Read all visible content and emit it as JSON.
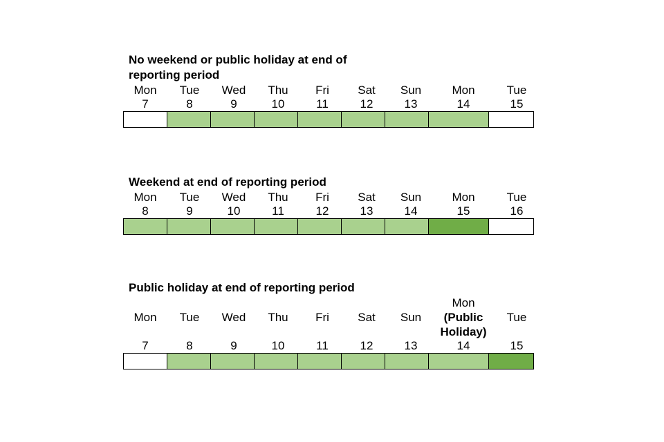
{
  "colors": {
    "cell_empty": "#FFFFFF",
    "cell_light": "#A9D18E",
    "cell_dark": "#70AD47",
    "border": "#000000"
  },
  "tables": [
    {
      "id": "no-weekend-or-public-holiday",
      "title": "No weekend or public holiday at end of\nreporting period",
      "columns": [
        {
          "day": [
            {
              "text": "Mon",
              "bold": false
            }
          ],
          "date": "7",
          "fill": "empty"
        },
        {
          "day": [
            {
              "text": "Tue",
              "bold": false
            }
          ],
          "date": "8",
          "fill": "light"
        },
        {
          "day": [
            {
              "text": "Wed",
              "bold": false
            }
          ],
          "date": "9",
          "fill": "light"
        },
        {
          "day": [
            {
              "text": "Thu",
              "bold": false
            }
          ],
          "date": "10",
          "fill": "light"
        },
        {
          "day": [
            {
              "text": "Fri",
              "bold": false
            }
          ],
          "date": "11",
          "fill": "light"
        },
        {
          "day": [
            {
              "text": "Sat",
              "bold": false
            }
          ],
          "date": "12",
          "fill": "light"
        },
        {
          "day": [
            {
              "text": "Sun",
              "bold": false
            }
          ],
          "date": "13",
          "fill": "light"
        },
        {
          "day": [
            {
              "text": "Mon",
              "bold": false
            }
          ],
          "date": "14",
          "fill": "light"
        },
        {
          "day": [
            {
              "text": "Tue",
              "bold": false
            }
          ],
          "date": "15",
          "fill": "empty"
        }
      ]
    },
    {
      "id": "weekend",
      "title": "Weekend at end of reporting period",
      "columns": [
        {
          "day": [
            {
              "text": "Mon",
              "bold": false
            }
          ],
          "date": "8",
          "fill": "light"
        },
        {
          "day": [
            {
              "text": "Tue",
              "bold": false
            }
          ],
          "date": "9",
          "fill": "light"
        },
        {
          "day": [
            {
              "text": "Wed",
              "bold": false
            }
          ],
          "date": "10",
          "fill": "light"
        },
        {
          "day": [
            {
              "text": "Thu",
              "bold": false
            }
          ],
          "date": "11",
          "fill": "light"
        },
        {
          "day": [
            {
              "text": "Fri",
              "bold": false
            }
          ],
          "date": "12",
          "fill": "light"
        },
        {
          "day": [
            {
              "text": "Sat",
              "bold": false
            }
          ],
          "date": "13",
          "fill": "light"
        },
        {
          "day": [
            {
              "text": "Sun",
              "bold": false
            }
          ],
          "date": "14",
          "fill": "light"
        },
        {
          "day": [
            {
              "text": "Mon",
              "bold": false
            }
          ],
          "date": "15",
          "fill": "dark"
        },
        {
          "day": [
            {
              "text": "Tue",
              "bold": false
            }
          ],
          "date": "16",
          "fill": "empty"
        }
      ]
    },
    {
      "id": "public-holiday",
      "title": "Public holiday at end of reporting period",
      "columns": [
        {
          "day": [
            {
              "text": "Mon",
              "bold": false
            }
          ],
          "date": "7",
          "fill": "empty"
        },
        {
          "day": [
            {
              "text": "Tue",
              "bold": false
            }
          ],
          "date": "8",
          "fill": "light"
        },
        {
          "day": [
            {
              "text": "Wed",
              "bold": false
            }
          ],
          "date": "9",
          "fill": "light"
        },
        {
          "day": [
            {
              "text": "Thu",
              "bold": false
            }
          ],
          "date": "10",
          "fill": "light"
        },
        {
          "day": [
            {
              "text": "Fri",
              "bold": false
            }
          ],
          "date": "11",
          "fill": "light"
        },
        {
          "day": [
            {
              "text": "Sat",
              "bold": false
            }
          ],
          "date": "12",
          "fill": "light"
        },
        {
          "day": [
            {
              "text": "Sun",
              "bold": false
            }
          ],
          "date": "13",
          "fill": "light"
        },
        {
          "day": [
            {
              "text": "Mon",
              "bold": false
            },
            {
              "text": "(Public",
              "bold": true
            },
            {
              "text": "Holiday)",
              "bold": true
            }
          ],
          "date": "14",
          "fill": "light"
        },
        {
          "day": [
            {
              "text": "Tue",
              "bold": false
            }
          ],
          "date": "15",
          "fill": "dark"
        }
      ]
    }
  ]
}
